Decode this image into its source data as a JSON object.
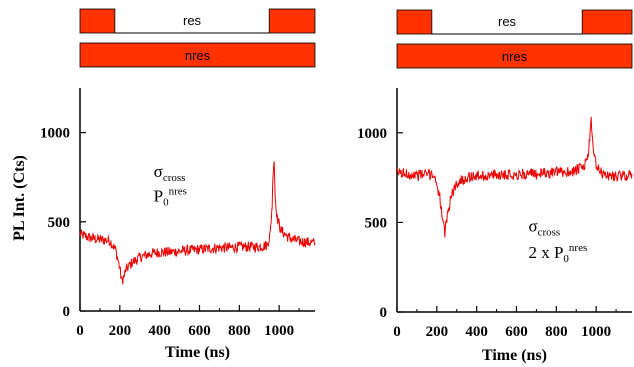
{
  "colors": {
    "accent": "#ff3300",
    "trace": "#ee0000",
    "axis": "#000000",
    "bar_outline": "#000000"
  },
  "y_axis_label": "PL Int. (Cts)",
  "chart_data": [
    {
      "type": "line",
      "panel": "left",
      "xlabel": "Time (ns)",
      "ylabel": "PL Int. (Cts)",
      "xlim": [
        0,
        1180
      ],
      "ylim": [
        0,
        1250
      ],
      "x_ticks": [
        "0",
        "200",
        "400",
        "600",
        "800",
        "1000"
      ],
      "y_ticks": [
        "0",
        "500",
        "1000"
      ],
      "timing_bars": [
        {
          "label": "res",
          "pulse_segments": [
            [
              0,
              175
            ],
            [
              950,
              1180
            ]
          ],
          "off_label_position": "center"
        },
        {
          "label": "nres",
          "pulse_segments": [
            [
              0,
              1180
            ]
          ]
        }
      ],
      "annotations": [
        {
          "symbol": "σ",
          "subscript": "cross",
          "at": [
            370,
            750
          ]
        },
        {
          "symbol": "P",
          "subscript": "0",
          "superscript": "nres",
          "at": [
            370,
            615
          ]
        }
      ],
      "series": [
        {
          "x": [
            0,
            50,
            100,
            150,
            180,
            200,
            210,
            220,
            230,
            260,
            300,
            350,
            400,
            450,
            500,
            550,
            600,
            650,
            700,
            750,
            800,
            850,
            900,
            940,
            955,
            965,
            970,
            975,
            980,
            990,
            1010,
            1050,
            1100,
            1150,
            1180
          ],
          "y": [
            430,
            410,
            400,
            395,
            340,
            240,
            165,
            190,
            230,
            270,
            300,
            320,
            330,
            330,
            335,
            340,
            345,
            350,
            355,
            355,
            360,
            360,
            360,
            370,
            430,
            600,
            800,
            850,
            640,
            520,
            450,
            410,
            390,
            385,
            380
          ]
        }
      ]
    },
    {
      "type": "line",
      "panel": "right",
      "xlabel": "Time (ns)",
      "ylabel": "",
      "xlim": [
        0,
        1180
      ],
      "ylim": [
        0,
        1250
      ],
      "x_ticks": [
        "0",
        "200",
        "400",
        "600",
        "800",
        "1000"
      ],
      "y_ticks": [
        "0",
        "500",
        "1000"
      ],
      "timing_bars": [
        {
          "label": "res",
          "pulse_segments": [
            [
              0,
              175
            ],
            [
              930,
              1180
            ]
          ],
          "off_label_position": "center"
        },
        {
          "label": "nres",
          "pulse_segments": [
            [
              0,
              1180
            ]
          ]
        }
      ],
      "annotations": [
        {
          "symbol": "σ",
          "subscript": "cross",
          "at": [
            660,
            450
          ]
        },
        {
          "prefix": "2 x ",
          "symbol": "P",
          "subscript": "0",
          "superscript": "nres",
          "at": [
            660,
            300
          ]
        }
      ],
      "series": [
        {
          "x": [
            0,
            50,
            100,
            150,
            180,
            200,
            215,
            230,
            240,
            250,
            270,
            300,
            350,
            400,
            450,
            500,
            550,
            600,
            650,
            700,
            750,
            800,
            850,
            900,
            940,
            960,
            975,
            985,
            1000,
            1020,
            1060,
            1100,
            1150,
            1180
          ],
          "y": [
            780,
            770,
            765,
            770,
            770,
            720,
            640,
            500,
            430,
            520,
            640,
            720,
            750,
            760,
            760,
            765,
            770,
            765,
            770,
            770,
            775,
            780,
            780,
            790,
            810,
            880,
            1060,
            900,
            820,
            780,
            760,
            760,
            760,
            770
          ]
        }
      ]
    }
  ]
}
